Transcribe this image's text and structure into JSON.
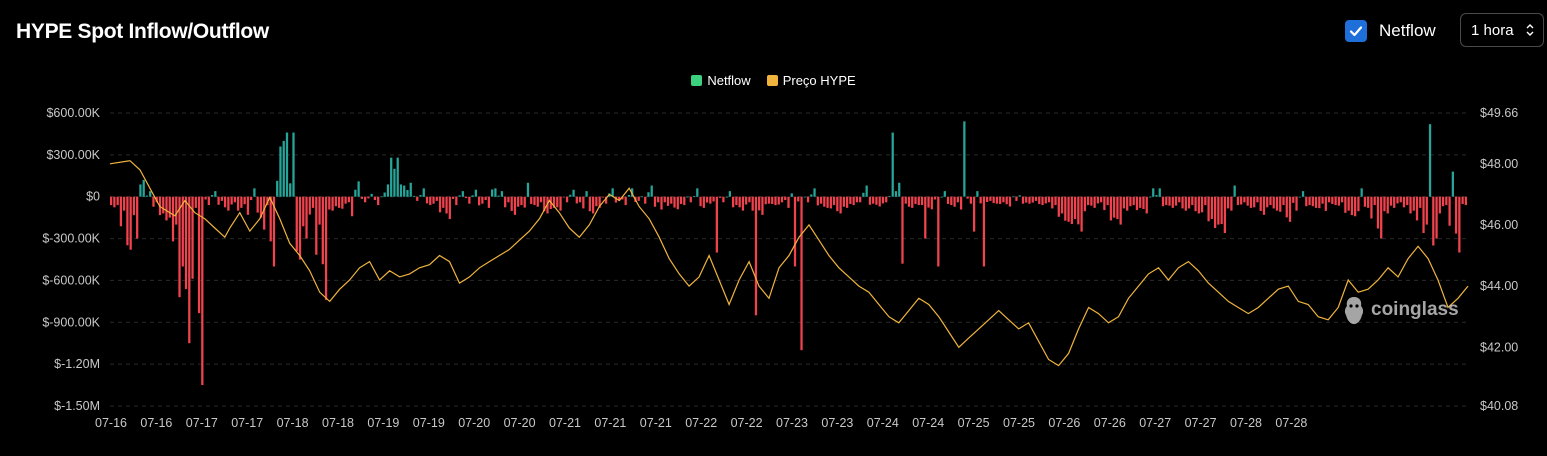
{
  "header": {
    "title": "HYPE Spot Inflow/Outflow",
    "toggle_label": "Netflow",
    "toggle_checked": true,
    "interval_value": "1 hora"
  },
  "legend": [
    {
      "label": "Netflow",
      "color": "#3cd17f"
    },
    {
      "label": "Preço HYPE",
      "color": "#f0b43c"
    }
  ],
  "watermark": "coinglass",
  "chart_data": {
    "type": "bar+line",
    "title": "HYPE Spot Inflow/Outflow",
    "y_left": {
      "ticks": [
        "$600.00K",
        "$300.00K",
        "$0",
        "$-300.00K",
        "$-600.00K",
        "$-900.00K",
        "$-1.20M",
        "$-1.50M"
      ],
      "range": [
        -1500000,
        600000
      ]
    },
    "y_right": {
      "ticks": [
        "$49.66",
        "$48.00",
        "$46.00",
        "$44.00",
        "$42.00",
        "$40.08"
      ],
      "range": [
        40.08,
        49.66
      ]
    },
    "x_labels": [
      "07-16",
      "07-16",
      "07-17",
      "07-17",
      "07-18",
      "07-18",
      "07-19",
      "07-19",
      "07-20",
      "07-20",
      "07-21",
      "07-21",
      "07-21",
      "07-22",
      "07-22",
      "07-23",
      "07-23",
      "07-24",
      "07-24",
      "07-25",
      "07-25",
      "07-26",
      "07-26",
      "07-27",
      "07-27",
      "07-28",
      "07-28"
    ],
    "colors": {
      "positive": "#26a69a",
      "negative": "#f0434e",
      "price": "#f0b43c",
      "grid": "#2a2a2a"
    },
    "netflow_keypoints": [
      [
        0,
        -60000
      ],
      [
        2,
        -100000
      ],
      [
        4,
        -380000
      ],
      [
        6,
        -300000
      ],
      [
        8,
        120000
      ],
      [
        10,
        40000
      ],
      [
        12,
        -40000
      ],
      [
        14,
        -120000
      ],
      [
        16,
        -150000
      ],
      [
        18,
        -200000
      ],
      [
        20,
        -500000
      ],
      [
        22,
        -1050000
      ],
      [
        24,
        -80000
      ],
      [
        26,
        -1350000
      ],
      [
        28,
        -60000
      ],
      [
        30,
        40000
      ],
      [
        32,
        -30000
      ],
      [
        34,
        -100000
      ],
      [
        36,
        -40000
      ],
      [
        38,
        -80000
      ],
      [
        40,
        -130000
      ],
      [
        42,
        60000
      ],
      [
        44,
        -150000
      ],
      [
        46,
        -60000
      ],
      [
        48,
        -500000
      ],
      [
        50,
        -50000
      ],
      [
        52,
        360000
      ],
      [
        54,
        460000
      ],
      [
        56,
        -450000
      ],
      [
        58,
        -300000
      ],
      [
        60,
        -80000
      ],
      [
        62,
        -200000
      ],
      [
        64,
        -740000
      ],
      [
        66,
        -100000
      ],
      [
        68,
        -80000
      ],
      [
        70,
        -50000
      ],
      [
        72,
        -140000
      ],
      [
        74,
        110000
      ],
      [
        76,
        -40000
      ],
      [
        78,
        20000
      ],
      [
        80,
        -60000
      ],
      [
        82,
        30000
      ],
      [
        84,
        -40000
      ],
      [
        86,
        280000
      ],
      [
        88,
        80000
      ],
      [
        90,
        100000
      ],
      [
        92,
        -30000
      ],
      [
        94,
        60000
      ],
      [
        96,
        -60000
      ],
      [
        98,
        -30000
      ],
      [
        100,
        -80000
      ],
      [
        102,
        -160000
      ],
      [
        104,
        -60000
      ],
      [
        106,
        50000
      ],
      [
        108,
        -50000
      ],
      [
        110,
        50000
      ],
      [
        112,
        -50000
      ],
      [
        114,
        -80000
      ],
      [
        116,
        60000
      ],
      [
        118,
        40000
      ],
      [
        120,
        -40000
      ],
      [
        122,
        -130000
      ],
      [
        124,
        -60000
      ],
      [
        126,
        -90000
      ],
      [
        128,
        -60000
      ],
      [
        130,
        -40000
      ],
      [
        132,
        -120000
      ],
      [
        134,
        -80000
      ],
      [
        136,
        -100000
      ],
      [
        138,
        -40000
      ],
      [
        140,
        50000
      ],
      [
        142,
        -40000
      ],
      [
        144,
        -60000
      ],
      [
        146,
        -120000
      ],
      [
        148,
        -80000
      ],
      [
        150,
        -50000
      ],
      [
        152,
        60000
      ],
      [
        154,
        -30000
      ],
      [
        156,
        -60000
      ],
      [
        158,
        40000
      ],
      [
        160,
        -30000
      ],
      [
        162,
        -50000
      ],
      [
        164,
        80000
      ],
      [
        166,
        -40000
      ],
      [
        168,
        -120000
      ],
      [
        170,
        -50000
      ],
      [
        172,
        -90000
      ],
      [
        174,
        -60000
      ],
      [
        176,
        -40000
      ],
      [
        178,
        60000
      ],
      [
        180,
        -80000
      ],
      [
        182,
        -50000
      ],
      [
        184,
        -30000
      ],
      [
        186,
        -40000
      ],
      [
        188,
        40000
      ],
      [
        190,
        -60000
      ],
      [
        192,
        -100000
      ],
      [
        194,
        -40000
      ],
      [
        196,
        -80000
      ],
      [
        198,
        -130000
      ],
      [
        200,
        -50000
      ],
      [
        202,
        -60000
      ],
      [
        204,
        -40000
      ],
      [
        206,
        -80000
      ],
      [
        208,
        60000
      ],
      [
        210,
        -30000
      ],
      [
        212,
        -40000
      ],
      [
        214,
        60000
      ],
      [
        216,
        -50000
      ],
      [
        218,
        -80000
      ],
      [
        220,
        -60000
      ],
      [
        222,
        -120000
      ],
      [
        224,
        -80000
      ],
      [
        226,
        -60000
      ],
      [
        228,
        -40000
      ],
      [
        230,
        80000
      ],
      [
        232,
        -50000
      ],
      [
        234,
        -70000
      ],
      [
        236,
        -40000
      ],
      [
        238,
        -60000
      ],
      [
        240,
        100000
      ],
      [
        242,
        -50000
      ],
      [
        244,
        -80000
      ],
      [
        246,
        -60000
      ],
      [
        248,
        -40000
      ],
      [
        250,
        -90000
      ],
      [
        252,
        -60000
      ],
      [
        254,
        40000
      ],
      [
        256,
        -60000
      ],
      [
        258,
        -40000
      ],
      [
        260,
        -120000
      ],
      [
        262,
        -50000
      ],
      [
        264,
        40000
      ],
      [
        266,
        -60000
      ],
      [
        268,
        -30000
      ],
      [
        270,
        -50000
      ],
      [
        272,
        -40000
      ],
      [
        274,
        -70000
      ],
      [
        276,
        -30000
      ],
      [
        278,
        50000
      ],
      [
        280,
        -50000
      ],
      [
        282,
        -30000
      ],
      [
        284,
        -60000
      ],
      [
        286,
        -40000
      ],
      [
        288,
        -60000
      ],
      [
        290,
        -120000
      ],
      [
        292,
        -180000
      ],
      [
        294,
        -160000
      ],
      [
        296,
        -250000
      ],
      [
        298,
        -120000
      ],
      [
        300,
        -80000
      ],
      [
        302,
        -40000
      ],
      [
        304,
        -60000
      ],
      [
        306,
        -150000
      ],
      [
        308,
        -200000
      ],
      [
        310,
        -100000
      ],
      [
        312,
        -60000
      ],
      [
        314,
        -80000
      ],
      [
        316,
        -120000
      ],
      [
        318,
        -40000
      ],
      [
        320,
        60000
      ],
      [
        322,
        -60000
      ],
      [
        324,
        -80000
      ],
      [
        326,
        -40000
      ],
      [
        328,
        -100000
      ],
      [
        330,
        -60000
      ],
      [
        332,
        -120000
      ],
      [
        334,
        -80000
      ],
      [
        336,
        -160000
      ],
      [
        338,
        -200000
      ],
      [
        340,
        -260000
      ],
      [
        342,
        -100000
      ],
      [
        344,
        -60000
      ],
      [
        346,
        -40000
      ],
      [
        348,
        -80000
      ],
      [
        350,
        -40000
      ],
      [
        352,
        -130000
      ],
      [
        354,
        -60000
      ],
      [
        356,
        -100000
      ],
      [
        358,
        -60000
      ],
      [
        360,
        -180000
      ],
      [
        362,
        -100000
      ],
      [
        364,
        40000
      ],
      [
        366,
        -60000
      ],
      [
        368,
        -80000
      ],
      [
        370,
        -50000
      ],
      [
        372,
        -130000
      ],
      [
        374,
        -60000
      ],
      [
        376,
        -40000
      ],
      [
        378,
        -100000
      ],
      [
        380,
        -140000
      ],
      [
        382,
        -120000
      ],
      [
        384,
        -80000
      ],
      [
        386,
        -60000
      ],
      [
        388,
        -300000
      ],
      [
        390,
        -120000
      ],
      [
        392,
        -80000
      ],
      [
        394,
        -40000
      ],
      [
        396,
        -60000
      ],
      [
        398,
        -100000
      ],
      [
        400,
        -150000
      ],
      [
        402,
        -200000
      ],
      [
        404,
        -350000
      ],
      [
        406,
        -120000
      ],
      [
        408,
        -60000
      ],
      [
        410,
        -80000
      ],
      [
        412,
        -400000
      ],
      [
        414,
        -60000
      ],
      [
        416,
        -40000
      ]
    ],
    "netflow_spikes": [
      [
        52,
        360000
      ],
      [
        54,
        460000
      ],
      [
        86,
        280000
      ],
      [
        108,
        40000
      ],
      [
        128,
        100000
      ],
      [
        146,
        40000
      ],
      [
        160,
        60000
      ],
      [
        170,
        -40000
      ],
      [
        186,
        -400000
      ],
      [
        198,
        -850000
      ],
      [
        210,
        -500000
      ],
      [
        212,
        -1100000
      ],
      [
        229,
        -40000
      ],
      [
        240,
        460000
      ],
      [
        243,
        -480000
      ],
      [
        250,
        -300000
      ],
      [
        254,
        -500000
      ],
      [
        262,
        540000
      ],
      [
        265,
        -250000
      ],
      [
        268,
        -500000
      ],
      [
        280,
        -50000
      ],
      [
        300,
        -60000
      ],
      [
        320,
        60000
      ],
      [
        336,
        -60000
      ],
      [
        345,
        80000
      ],
      [
        374,
        -40000
      ],
      [
        384,
        60000
      ],
      [
        402,
        -80000
      ],
      [
        405,
        520000
      ],
      [
        407,
        -300000
      ],
      [
        412,
        180000
      ]
    ],
    "price_keypoints": [
      [
        0,
        48.0
      ],
      [
        8,
        48.1
      ],
      [
        12,
        47.8
      ],
      [
        16,
        47.2
      ],
      [
        20,
        46.6
      ],
      [
        26,
        46.3
      ],
      [
        30,
        46.8
      ],
      [
        34,
        46.4
      ],
      [
        38,
        46.2
      ],
      [
        42,
        45.9
      ],
      [
        46,
        45.6
      ],
      [
        48,
        45.9
      ],
      [
        52,
        46.4
      ],
      [
        56,
        45.8
      ],
      [
        60,
        46.2
      ],
      [
        64,
        46.9
      ],
      [
        68,
        46.2
      ],
      [
        72,
        45.4
      ],
      [
        76,
        45.0
      ],
      [
        80,
        44.5
      ],
      [
        84,
        43.8
      ],
      [
        88,
        43.5
      ],
      [
        92,
        43.9
      ],
      [
        96,
        44.2
      ],
      [
        100,
        44.6
      ],
      [
        104,
        44.8
      ],
      [
        108,
        44.2
      ],
      [
        112,
        44.5
      ],
      [
        116,
        44.3
      ],
      [
        120,
        44.4
      ],
      [
        124,
        44.6
      ],
      [
        128,
        44.7
      ],
      [
        132,
        45.0
      ],
      [
        136,
        44.8
      ],
      [
        140,
        44.1
      ],
      [
        144,
        44.3
      ],
      [
        148,
        44.6
      ],
      [
        152,
        44.8
      ],
      [
        156,
        45.0
      ],
      [
        160,
        45.2
      ],
      [
        164,
        45.5
      ],
      [
        168,
        45.8
      ],
      [
        172,
        46.2
      ],
      [
        176,
        46.8
      ],
      [
        180,
        46.4
      ],
      [
        184,
        45.9
      ],
      [
        188,
        45.6
      ],
      [
        192,
        46.0
      ],
      [
        196,
        46.6
      ],
      [
        200,
        47.0
      ],
      [
        204,
        46.8
      ],
      [
        208,
        47.2
      ],
      [
        212,
        46.6
      ],
      [
        216,
        46.2
      ],
      [
        220,
        45.6
      ],
      [
        224,
        44.9
      ],
      [
        228,
        44.4
      ],
      [
        232,
        44.0
      ],
      [
        236,
        44.3
      ],
      [
        240,
        45.0
      ],
      [
        244,
        44.2
      ],
      [
        248,
        43.4
      ],
      [
        252,
        44.2
      ],
      [
        256,
        44.8
      ],
      [
        260,
        44.0
      ],
      [
        264,
        43.6
      ],
      [
        268,
        44.6
      ],
      [
        272,
        45.0
      ],
      [
        276,
        45.6
      ],
      [
        280,
        46.0
      ],
      [
        284,
        45.5
      ],
      [
        288,
        45.0
      ],
      [
        292,
        44.6
      ],
      [
        296,
        44.3
      ],
      [
        300,
        44.0
      ],
      [
        304,
        43.8
      ],
      [
        308,
        43.4
      ],
      [
        312,
        43.0
      ],
      [
        316,
        42.8
      ],
      [
        320,
        43.2
      ],
      [
        324,
        43.6
      ],
      [
        328,
        43.4
      ],
      [
        332,
        43.0
      ],
      [
        336,
        42.5
      ],
      [
        340,
        42.0
      ],
      [
        344,
        42.3
      ],
      [
        348,
        42.6
      ],
      [
        352,
        42.9
      ],
      [
        356,
        43.2
      ],
      [
        360,
        42.9
      ],
      [
        364,
        42.6
      ],
      [
        368,
        42.8
      ],
      [
        372,
        42.2
      ],
      [
        376,
        41.6
      ],
      [
        380,
        41.4
      ],
      [
        384,
        41.8
      ],
      [
        388,
        42.6
      ],
      [
        392,
        43.3
      ],
      [
        396,
        43.1
      ],
      [
        400,
        42.8
      ],
      [
        404,
        43.0
      ],
      [
        408,
        43.6
      ],
      [
        412,
        44.0
      ],
      [
        416,
        44.4
      ],
      [
        420,
        44.6
      ],
      [
        424,
        44.2
      ],
      [
        428,
        44.6
      ],
      [
        432,
        44.8
      ],
      [
        436,
        44.5
      ],
      [
        440,
        44.1
      ],
      [
        444,
        43.8
      ],
      [
        448,
        43.5
      ],
      [
        452,
        43.3
      ],
      [
        456,
        43.1
      ],
      [
        460,
        43.3
      ],
      [
        464,
        43.6
      ],
      [
        468,
        43.9
      ],
      [
        472,
        44.0
      ],
      [
        476,
        43.5
      ],
      [
        480,
        43.4
      ],
      [
        484,
        43.0
      ],
      [
        488,
        42.9
      ],
      [
        492,
        43.3
      ],
      [
        496,
        44.2
      ],
      [
        500,
        43.8
      ],
      [
        504,
        43.9
      ],
      [
        508,
        44.2
      ],
      [
        512,
        44.6
      ],
      [
        516,
        44.3
      ],
      [
        520,
        44.9
      ],
      [
        524,
        45.3
      ],
      [
        528,
        44.9
      ],
      [
        532,
        44.2
      ],
      [
        536,
        43.3
      ],
      [
        540,
        43.6
      ],
      [
        544,
        44.0
      ]
    ]
  }
}
